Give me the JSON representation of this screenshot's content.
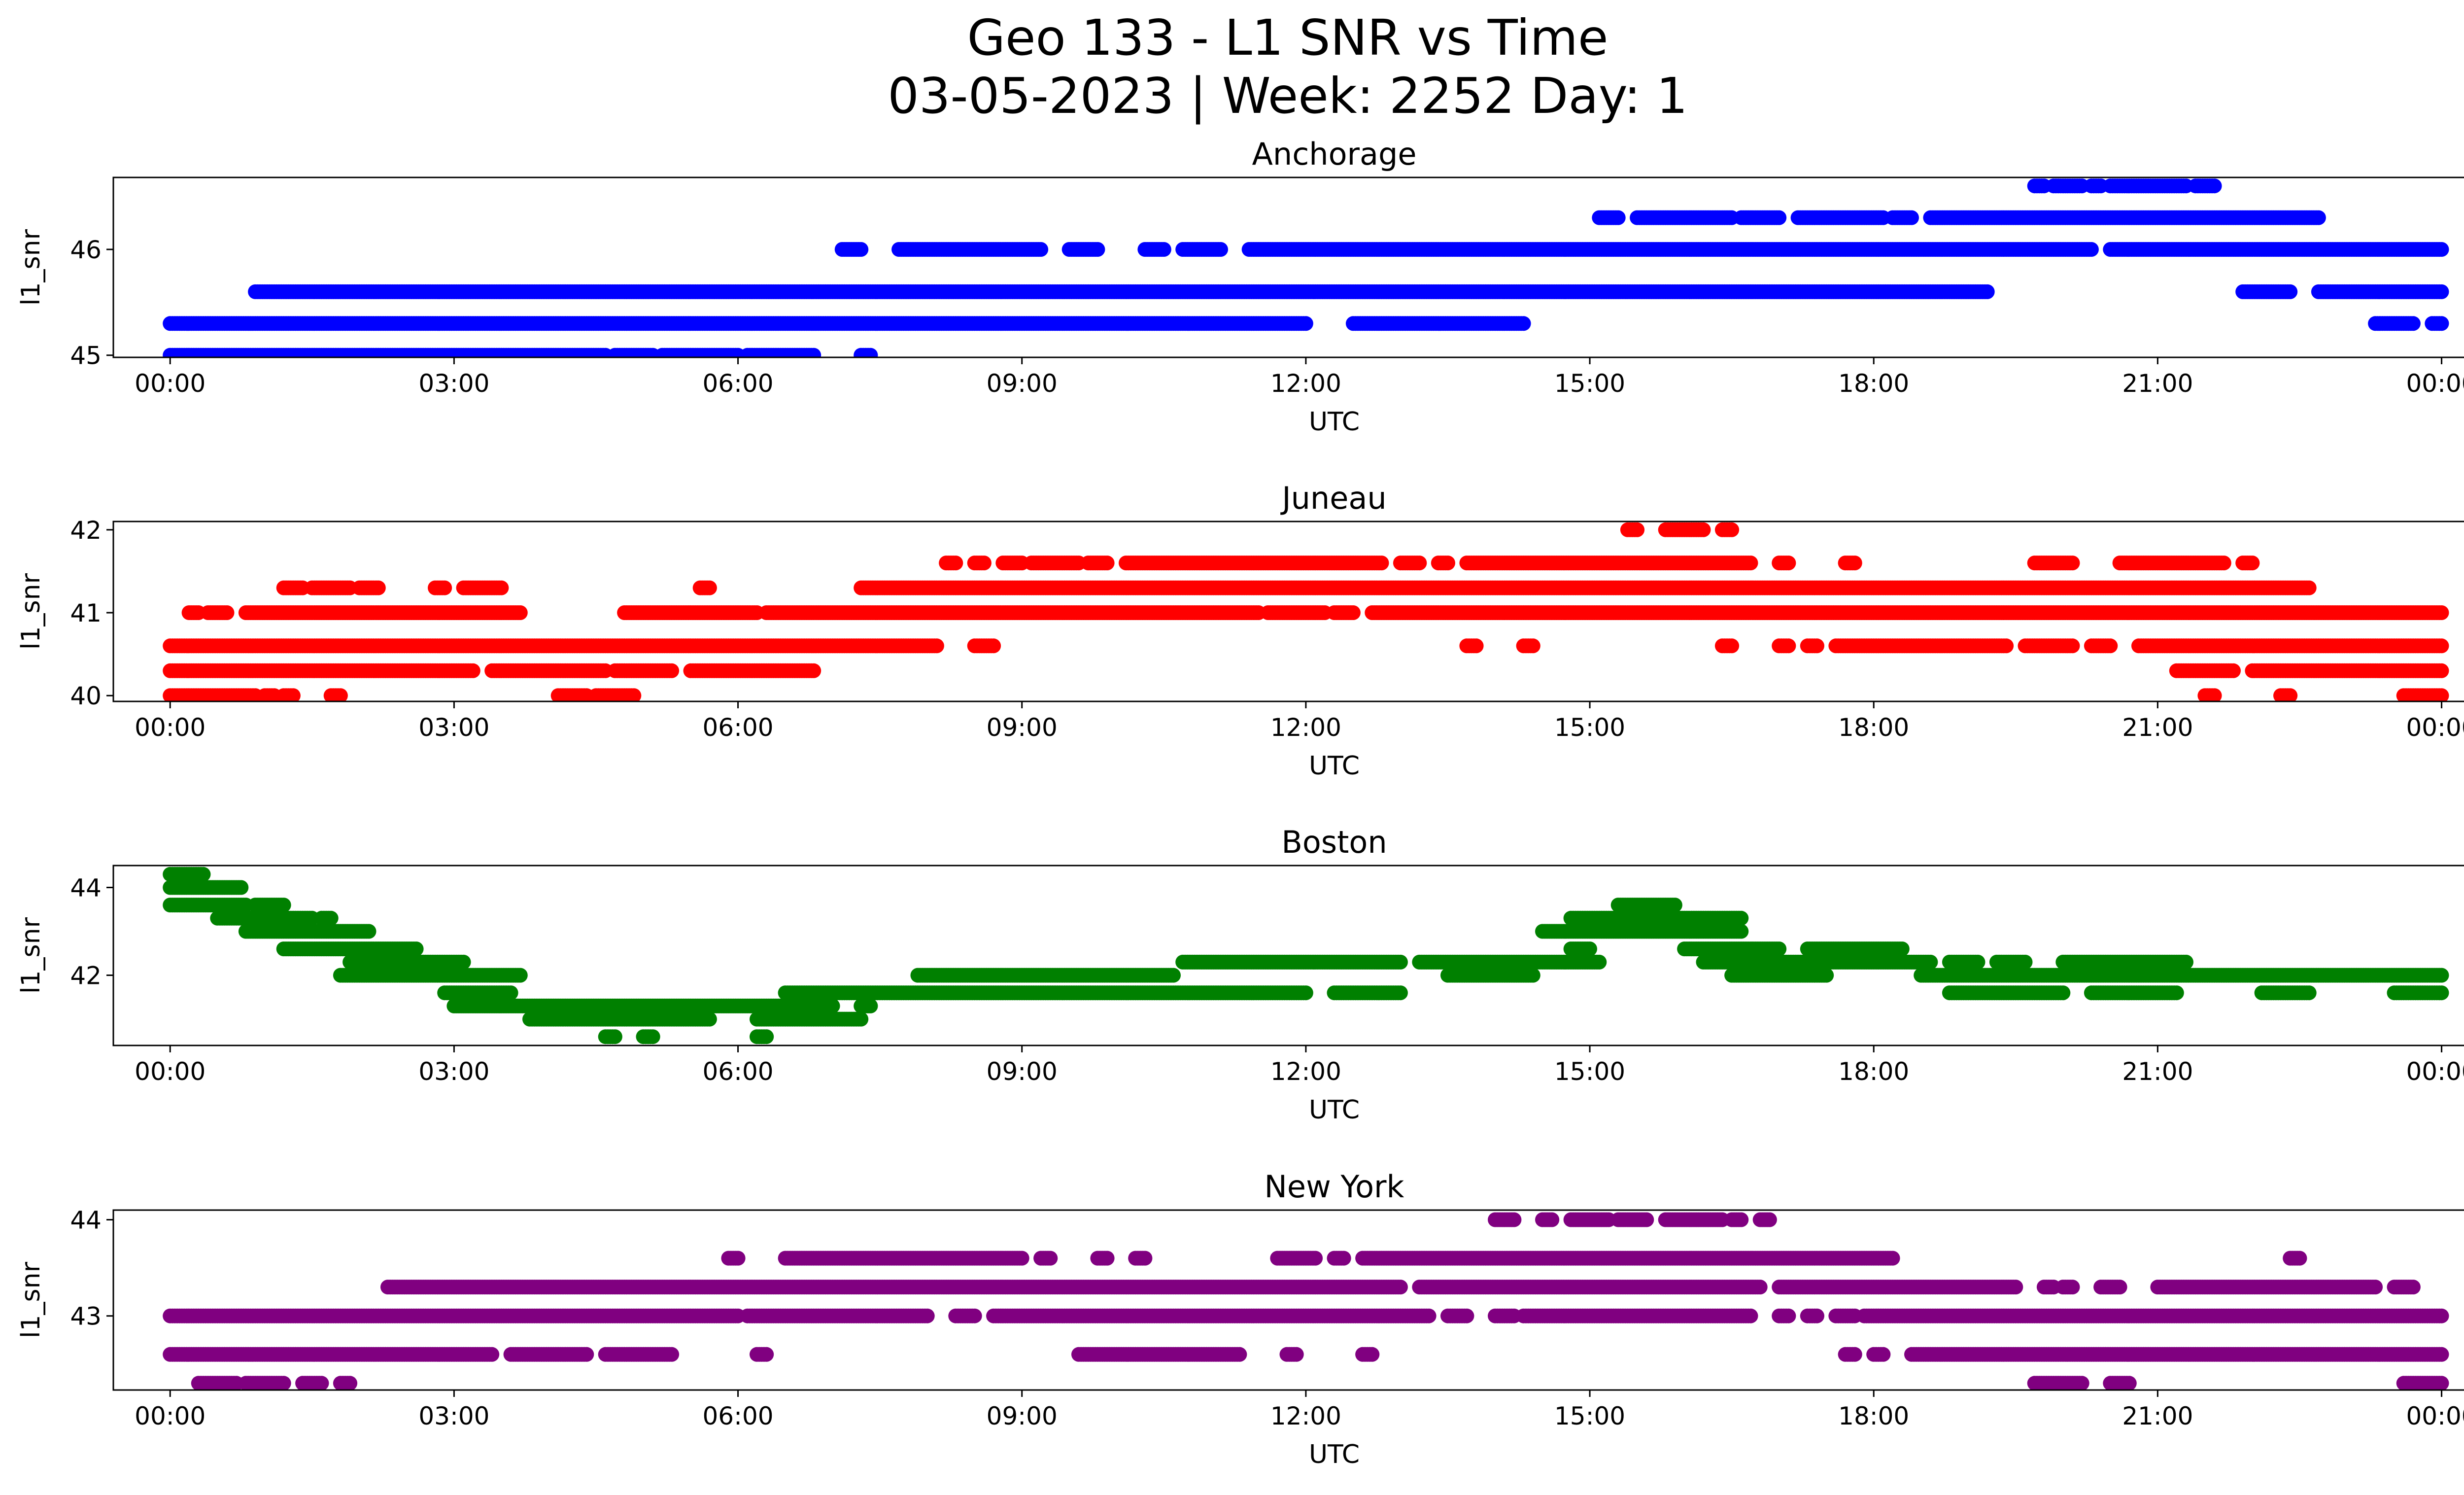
{
  "figure": {
    "title_line1": "Geo 133 - L1 SNR vs Time",
    "title_line2": "03-05-2023 | Week: 2252 Day: 1"
  },
  "chart_data": [
    {
      "type": "scatter",
      "title": "Anchorage",
      "xlabel": "UTC",
      "ylabel": "l1_snr",
      "color": "#0000ff",
      "x_ticks": [
        "00:00",
        "03:00",
        "06:00",
        "09:00",
        "12:00",
        "15:00",
        "18:00",
        "21:00",
        "00:00"
      ],
      "x_range_hours": [
        -0.6,
        25.2
      ],
      "yticks": [
        45,
        46
      ],
      "ylim": [
        44.98,
        46.68
      ],
      "grid": false,
      "bands": [
        {
          "y": 45.0,
          "ranges": [
            [
              0.0,
              4.6
            ],
            [
              4.7,
              5.1
            ],
            [
              5.2,
              6.0
            ],
            [
              6.1,
              6.8
            ],
            [
              7.3,
              7.4
            ]
          ]
        },
        {
          "y": 45.3,
          "ranges": [
            [
              0.0,
              12.0
            ],
            [
              12.5,
              14.3
            ]
          ]
        },
        {
          "y": 45.6,
          "ranges": [
            [
              0.9,
              19.2
            ],
            [
              21.9,
              22.4
            ],
            [
              22.7,
              24.0
            ]
          ]
        },
        {
          "y": 46.0,
          "ranges": [
            [
              7.1,
              7.3
            ],
            [
              7.7,
              9.2
            ],
            [
              9.5,
              9.8
            ],
            [
              10.3,
              10.5
            ],
            [
              10.7,
              11.1
            ],
            [
              11.4,
              20.3
            ],
            [
              20.5,
              24.0
            ]
          ]
        },
        {
          "y": 46.3,
          "ranges": [
            [
              15.1,
              15.3
            ],
            [
              15.5,
              16.5
            ],
            [
              16.6,
              17.0
            ],
            [
              17.2,
              18.1
            ],
            [
              18.2,
              18.4
            ],
            [
              18.6,
              22.7
            ]
          ]
        },
        {
          "y": 46.6,
          "ranges": [
            [
              19.7,
              19.8
            ],
            [
              19.9,
              20.2
            ],
            [
              20.3,
              20.4
            ],
            [
              20.5,
              21.3
            ],
            [
              21.4,
              21.6
            ]
          ]
        },
        {
          "y": 45.3,
          "ranges": [
            [
              23.3,
              23.7
            ],
            [
              23.9,
              24.0
            ]
          ]
        }
      ]
    },
    {
      "type": "scatter",
      "title": "Juneau",
      "xlabel": "UTC",
      "ylabel": "l1_snr",
      "color": "#ff0000",
      "x_ticks": [
        "00:00",
        "03:00",
        "06:00",
        "09:00",
        "12:00",
        "15:00",
        "18:00",
        "21:00",
        "00:00"
      ],
      "x_range_hours": [
        -0.6,
        25.2
      ],
      "yticks": [
        40,
        41,
        42
      ],
      "ylim": [
        39.93,
        42.1
      ],
      "grid": false,
      "bands": [
        {
          "y": 40.0,
          "ranges": [
            [
              0.0,
              0.9
            ],
            [
              1.0,
              1.1
            ],
            [
              1.2,
              1.3
            ],
            [
              1.7,
              1.8
            ],
            [
              4.1,
              4.4
            ],
            [
              4.5,
              4.9
            ],
            [
              21.5,
              21.6
            ],
            [
              22.3,
              22.4
            ],
            [
              23.6,
              24.0
            ]
          ]
        },
        {
          "y": 40.3,
          "ranges": [
            [
              0.0,
              3.2
            ],
            [
              3.4,
              4.6
            ],
            [
              4.7,
              5.3
            ],
            [
              5.5,
              6.8
            ],
            [
              21.2,
              21.8
            ],
            [
              22.0,
              24.0
            ]
          ]
        },
        {
          "y": 40.6,
          "ranges": [
            [
              0.0,
              8.1
            ],
            [
              8.5,
              8.7
            ],
            [
              13.7,
              13.8
            ],
            [
              14.3,
              14.4
            ],
            [
              16.4,
              16.5
            ],
            [
              17.0,
              17.1
            ],
            [
              17.3,
              17.4
            ],
            [
              17.6,
              19.4
            ],
            [
              19.6,
              20.1
            ],
            [
              20.3,
              20.5
            ],
            [
              20.8,
              24.0
            ]
          ]
        },
        {
          "y": 41.0,
          "ranges": [
            [
              0.2,
              0.3
            ],
            [
              0.4,
              0.6
            ],
            [
              0.8,
              3.7
            ],
            [
              4.8,
              6.2
            ],
            [
              6.3,
              11.5
            ],
            [
              11.6,
              12.2
            ],
            [
              12.3,
              12.5
            ],
            [
              12.7,
              24.0
            ]
          ]
        },
        {
          "y": 41.3,
          "ranges": [
            [
              1.2,
              1.4
            ],
            [
              1.5,
              1.9
            ],
            [
              2.0,
              2.2
            ],
            [
              2.8,
              2.9
            ],
            [
              3.1,
              3.5
            ],
            [
              5.6,
              5.7
            ],
            [
              7.3,
              22.6
            ]
          ]
        },
        {
          "y": 41.6,
          "ranges": [
            [
              8.2,
              8.3
            ],
            [
              8.5,
              8.6
            ],
            [
              8.8,
              9.0
            ],
            [
              9.1,
              9.6
            ],
            [
              9.7,
              9.9
            ],
            [
              10.1,
              12.8
            ],
            [
              13.0,
              13.2
            ],
            [
              13.4,
              13.5
            ],
            [
              13.7,
              16.7
            ],
            [
              17.0,
              17.1
            ],
            [
              17.7,
              17.8
            ],
            [
              19.7,
              20.1
            ],
            [
              20.6,
              21.7
            ],
            [
              21.9,
              22.0
            ]
          ]
        },
        {
          "y": 42.0,
          "ranges": [
            [
              15.4,
              15.5
            ],
            [
              15.8,
              16.2
            ],
            [
              16.4,
              16.5
            ]
          ]
        }
      ]
    },
    {
      "type": "scatter",
      "title": "Boston",
      "xlabel": "UTC",
      "ylabel": "l1_snr",
      "color": "#008000",
      "x_ticks": [
        "00:00",
        "03:00",
        "06:00",
        "09:00",
        "12:00",
        "15:00",
        "18:00",
        "21:00",
        "00:00"
      ],
      "x_range_hours": [
        -0.6,
        25.2
      ],
      "yticks": [
        42,
        44
      ],
      "ylim": [
        40.4,
        44.5
      ],
      "grid": false,
      "bands": [
        {
          "y": 44.3,
          "ranges": [
            [
              0.0,
              0.35
            ]
          ]
        },
        {
          "y": 44.0,
          "ranges": [
            [
              0.0,
              0.75
            ]
          ]
        },
        {
          "y": 43.6,
          "ranges": [
            [
              0.0,
              0.8
            ],
            [
              0.9,
              1.2
            ]
          ]
        },
        {
          "y": 43.3,
          "ranges": [
            [
              0.5,
              1.5
            ],
            [
              1.6,
              1.7
            ]
          ]
        },
        {
          "y": 43.0,
          "ranges": [
            [
              0.8,
              2.1
            ]
          ]
        },
        {
          "y": 42.6,
          "ranges": [
            [
              1.2,
              2.6
            ],
            [
              14.8,
              15.0
            ],
            [
              16.0,
              17.0
            ],
            [
              17.3,
              18.3
            ]
          ]
        },
        {
          "y": 42.3,
          "ranges": [
            [
              1.9,
              3.1
            ],
            [
              10.7,
              13.0
            ],
            [
              13.2,
              15.1
            ],
            [
              16.2,
              18.6
            ],
            [
              18.8,
              19.1
            ],
            [
              19.3,
              19.6
            ],
            [
              20.0,
              21.3
            ]
          ]
        },
        {
          "y": 42.0,
          "ranges": [
            [
              1.8,
              3.7
            ],
            [
              7.9,
              10.6
            ],
            [
              13.5,
              14.4
            ],
            [
              16.5,
              17.5
            ],
            [
              18.5,
              24.0
            ]
          ]
        },
        {
          "y": 41.6,
          "ranges": [
            [
              2.9,
              3.6
            ],
            [
              6.5,
              12.0
            ],
            [
              12.3,
              13.0
            ],
            [
              18.8,
              20.0
            ],
            [
              20.3,
              21.2
            ],
            [
              22.1,
              22.6
            ],
            [
              23.5,
              24.0
            ]
          ]
        },
        {
          "y": 41.3,
          "ranges": [
            [
              3.0,
              7.0
            ],
            [
              7.3,
              7.4
            ]
          ]
        },
        {
          "y": 41.0,
          "ranges": [
            [
              3.8,
              5.7
            ],
            [
              6.2,
              7.3
            ]
          ]
        },
        {
          "y": 40.6,
          "ranges": [
            [
              4.6,
              4.7
            ],
            [
              5.0,
              5.1
            ],
            [
              6.2,
              6.3
            ]
          ]
        },
        {
          "y": 43.0,
          "ranges": [
            [
              14.5,
              16.6
            ]
          ]
        },
        {
          "y": 43.3,
          "ranges": [
            [
              14.8,
              16.6
            ]
          ]
        },
        {
          "y": 43.6,
          "ranges": [
            [
              15.3,
              15.9
            ]
          ]
        }
      ]
    },
    {
      "type": "scatter",
      "title": "New York",
      "xlabel": "UTC",
      "ylabel": "l1_snr",
      "color": "#800080",
      "x_ticks": [
        "00:00",
        "03:00",
        "06:00",
        "09:00",
        "12:00",
        "15:00",
        "18:00",
        "21:00",
        "00:00"
      ],
      "x_range_hours": [
        -0.6,
        25.2
      ],
      "yticks": [
        43,
        44
      ],
      "ylim": [
        42.23,
        44.1
      ],
      "grid": false,
      "bands": [
        {
          "y": 42.3,
          "ranges": [
            [
              0.3,
              0.7
            ],
            [
              0.8,
              1.2
            ],
            [
              1.4,
              1.6
            ],
            [
              1.8,
              1.9
            ],
            [
              19.7,
              20.2
            ],
            [
              20.5,
              20.7
            ],
            [
              23.6,
              24.0
            ]
          ]
        },
        {
          "y": 42.6,
          "ranges": [
            [
              0.0,
              3.4
            ],
            [
              3.6,
              4.4
            ],
            [
              4.6,
              5.3
            ],
            [
              6.2,
              6.3
            ],
            [
              9.6,
              11.3
            ],
            [
              11.8,
              11.9
            ],
            [
              12.6,
              12.7
            ],
            [
              17.7,
              17.8
            ],
            [
              18.0,
              18.1
            ],
            [
              18.4,
              24.0
            ]
          ]
        },
        {
          "y": 43.0,
          "ranges": [
            [
              0.0,
              6.0
            ],
            [
              6.1,
              8.0
            ],
            [
              8.3,
              8.5
            ],
            [
              8.7,
              13.3
            ],
            [
              13.5,
              13.7
            ],
            [
              14.0,
              14.2
            ],
            [
              14.3,
              16.7
            ],
            [
              17.0,
              17.1
            ],
            [
              17.3,
              17.4
            ],
            [
              17.6,
              17.8
            ],
            [
              17.9,
              24.0
            ]
          ]
        },
        {
          "y": 43.3,
          "ranges": [
            [
              2.3,
              13.0
            ],
            [
              13.2,
              16.8
            ],
            [
              17.0,
              19.5
            ],
            [
              19.8,
              19.9
            ],
            [
              20.0,
              20.1
            ],
            [
              20.4,
              20.6
            ],
            [
              21.0,
              23.3
            ],
            [
              23.5,
              23.7
            ]
          ]
        },
        {
          "y": 43.6,
          "ranges": [
            [
              5.9,
              6.0
            ],
            [
              6.5,
              9.0
            ],
            [
              9.2,
              9.3
            ],
            [
              9.8,
              9.9
            ],
            [
              10.2,
              10.3
            ],
            [
              11.7,
              12.1
            ],
            [
              12.3,
              12.4
            ],
            [
              12.6,
              18.2
            ],
            [
              22.4,
              22.5
            ]
          ]
        },
        {
          "y": 44.0,
          "ranges": [
            [
              14.0,
              14.2
            ],
            [
              14.5,
              14.6
            ],
            [
              14.8,
              15.2
            ],
            [
              15.3,
              15.6
            ],
            [
              15.8,
              16.4
            ],
            [
              16.5,
              16.6
            ],
            [
              16.8,
              16.9
            ]
          ]
        }
      ]
    }
  ]
}
